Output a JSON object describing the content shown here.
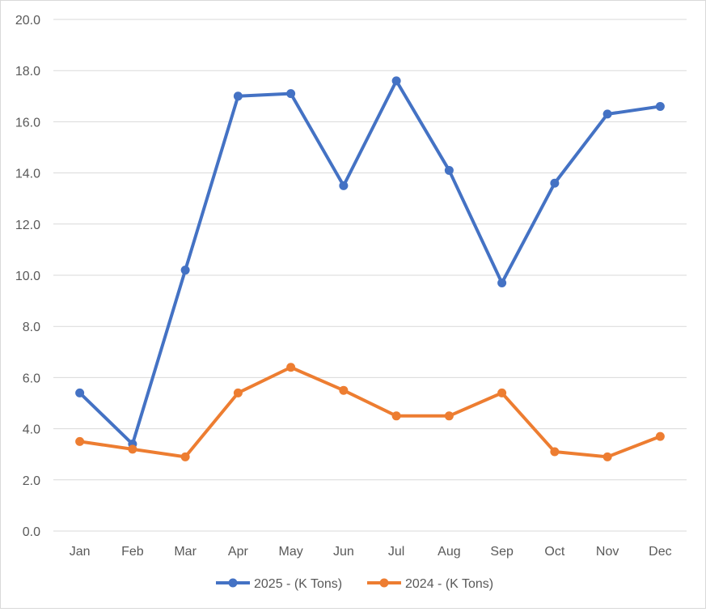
{
  "chart_data": {
    "type": "line",
    "title": "",
    "xlabel": "",
    "ylabel": "",
    "categories": [
      "Jan",
      "Feb",
      "Mar",
      "Apr",
      "May",
      "Jun",
      "Jul",
      "Aug",
      "Sep",
      "Oct",
      "Nov",
      "Dec"
    ],
    "ylim": [
      0,
      20
    ],
    "y_ticks": [
      "0.0",
      "2.0",
      "4.0",
      "6.0",
      "8.0",
      "10.0",
      "12.0",
      "14.0",
      "16.0",
      "18.0",
      "20.0"
    ],
    "grid": "horizontal",
    "legend_position": "bottom",
    "series": [
      {
        "name": "2025 - (K Tons)",
        "color": "#4472c4",
        "values": [
          5.4,
          3.4,
          10.2,
          17.0,
          17.1,
          13.5,
          17.6,
          14.1,
          9.7,
          13.6,
          16.3,
          16.6
        ]
      },
      {
        "name": "2024 - (K Tons)",
        "color": "#ed7d31",
        "values": [
          3.5,
          3.2,
          2.9,
          5.4,
          6.4,
          5.5,
          4.5,
          4.5,
          5.4,
          3.1,
          2.9,
          3.7
        ]
      }
    ]
  }
}
